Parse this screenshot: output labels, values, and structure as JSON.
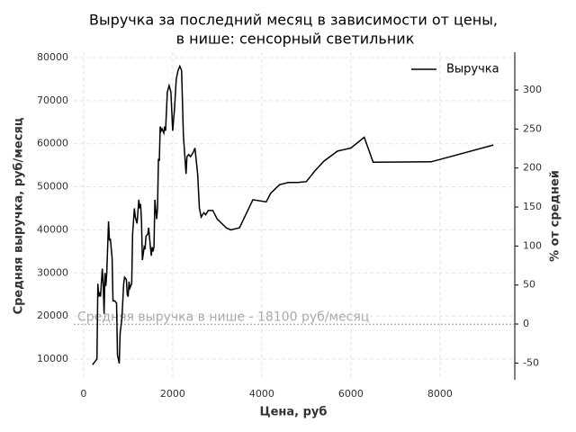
{
  "chart_data": {
    "type": "line",
    "title": [
      "Выручка за последний месяц в зависимости от цены,",
      "в нише: сенсорный светильник"
    ],
    "xlabel": "Цена, руб",
    "ylabel": "Средняя выручка, руб/месяц",
    "y2label": "% от средней",
    "x": [
      200,
      300,
      320,
      340,
      360,
      380,
      420,
      440,
      460,
      480,
      500,
      520,
      560,
      580,
      600,
      640,
      660,
      700,
      740,
      760,
      800,
      820,
      860,
      900,
      920,
      960,
      980,
      1000,
      1020,
      1040,
      1080,
      1100,
      1140,
      1160,
      1200,
      1240,
      1260,
      1280,
      1300,
      1320,
      1340,
      1360,
      1380,
      1400,
      1440,
      1460,
      1500,
      1520,
      1540,
      1560,
      1580,
      1600,
      1640,
      1660,
      1680,
      1700,
      1720,
      1740,
      1760,
      1800,
      1820,
      1840,
      1880,
      1920,
      1960,
      2000,
      2040,
      2080,
      2120,
      2160,
      2200,
      2240,
      2300,
      2320,
      2360,
      2400,
      2460,
      2500,
      2560,
      2600,
      2640,
      2700,
      2740,
      2800,
      2900,
      3000,
      3200,
      3300,
      3500,
      3800,
      4100,
      4200,
      4400,
      4600,
      4800,
      5000,
      5200,
      5400,
      5700,
      6000,
      6300,
      6500,
      7800,
      9200
    ],
    "series": [
      {
        "name": "Выручка",
        "color": "#000000",
        "values": [
          8700,
          10000,
          27500,
          24500,
          25500,
          24500,
          31000,
          27500,
          20500,
          30000,
          27000,
          30000,
          42000,
          37500,
          38000,
          33500,
          23500,
          23500,
          23000,
          11000,
          9000,
          16000,
          19500,
          27500,
          29000,
          28500,
          25000,
          24500,
          28000,
          26500,
          27500,
          39000,
          45000,
          43000,
          41500,
          47000,
          45000,
          46000,
          42000,
          33000,
          34500,
          36000,
          35500,
          38500,
          39000,
          40500,
          36000,
          34000,
          36000,
          35000,
          36000,
          47000,
          42500,
          45000,
          56500,
          56000,
          64000,
          63000,
          63500,
          62500,
          64000,
          63000,
          72000,
          73500,
          72000,
          63000,
          68000,
          75000,
          77000,
          78000,
          77000,
          62000,
          53000,
          57000,
          57500,
          57000,
          58000,
          59000,
          53000,
          45000,
          43000,
          44000,
          43500,
          44500,
          44500,
          42500,
          40500,
          40000,
          40500,
          47000,
          46500,
          48500,
          50500,
          51000,
          51000,
          51200,
          53800,
          56000,
          58300,
          59000,
          61500,
          55700,
          55800,
          59700
        ]
      }
    ],
    "xlim": [
      -220,
      9680
    ],
    "xticks": [
      0,
      2000,
      4000,
      6000,
      8000
    ],
    "ylim": [
      5200,
      81250
    ],
    "yticks": [
      10000,
      20000,
      30000,
      40000,
      50000,
      60000,
      70000,
      80000
    ],
    "y2lim": [
      -71.5,
      348.5
    ],
    "y2ticks": [
      -50,
      0,
      50,
      100,
      150,
      200,
      250,
      300
    ],
    "annotation": {
      "text": "Средняя выручка в нише - 18100 руб/месяц",
      "value": 18100
    },
    "grid": true,
    "legend": "upper right"
  }
}
